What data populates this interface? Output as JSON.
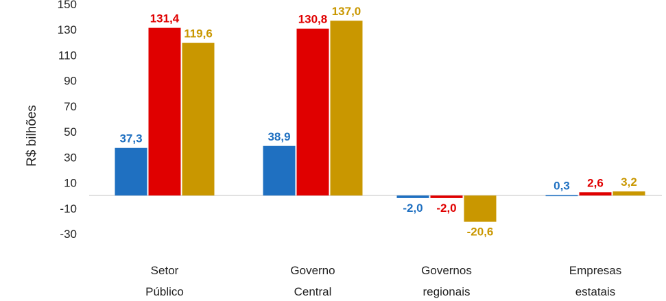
{
  "chart_data": {
    "type": "bar",
    "title": "",
    "xlabel": "",
    "ylabel": "R$ bilhões",
    "ylim": [
      -30,
      150
    ],
    "yticks": [
      "150",
      "130",
      "110",
      "90",
      "70",
      "50",
      "30",
      "10",
      "-10",
      "-30"
    ],
    "categories": [
      [
        "Setor",
        "Público"
      ],
      [
        "Governo",
        "Central"
      ],
      [
        "Governos",
        "regionais"
      ],
      [
        "Empresas",
        "estatais"
      ]
    ],
    "grid": false,
    "legend": "none",
    "series": [
      {
        "color": "#1f70c1",
        "values": [
          37.3,
          38.9,
          -2.0,
          0.3
        ],
        "labels": [
          "37,3",
          "38,9",
          "-2,0",
          "0,3"
        ]
      },
      {
        "color": "#e00000",
        "values": [
          131.4,
          130.8,
          -2.0,
          2.6
        ],
        "labels": [
          "131,4",
          "130,8",
          "-2,0",
          "2,6"
        ]
      },
      {
        "color": "#c99700",
        "values": [
          119.6,
          137.0,
          -20.6,
          3.2
        ],
        "labels": [
          "119,6",
          "137,0",
          "-20,6",
          "3,2"
        ]
      }
    ]
  }
}
